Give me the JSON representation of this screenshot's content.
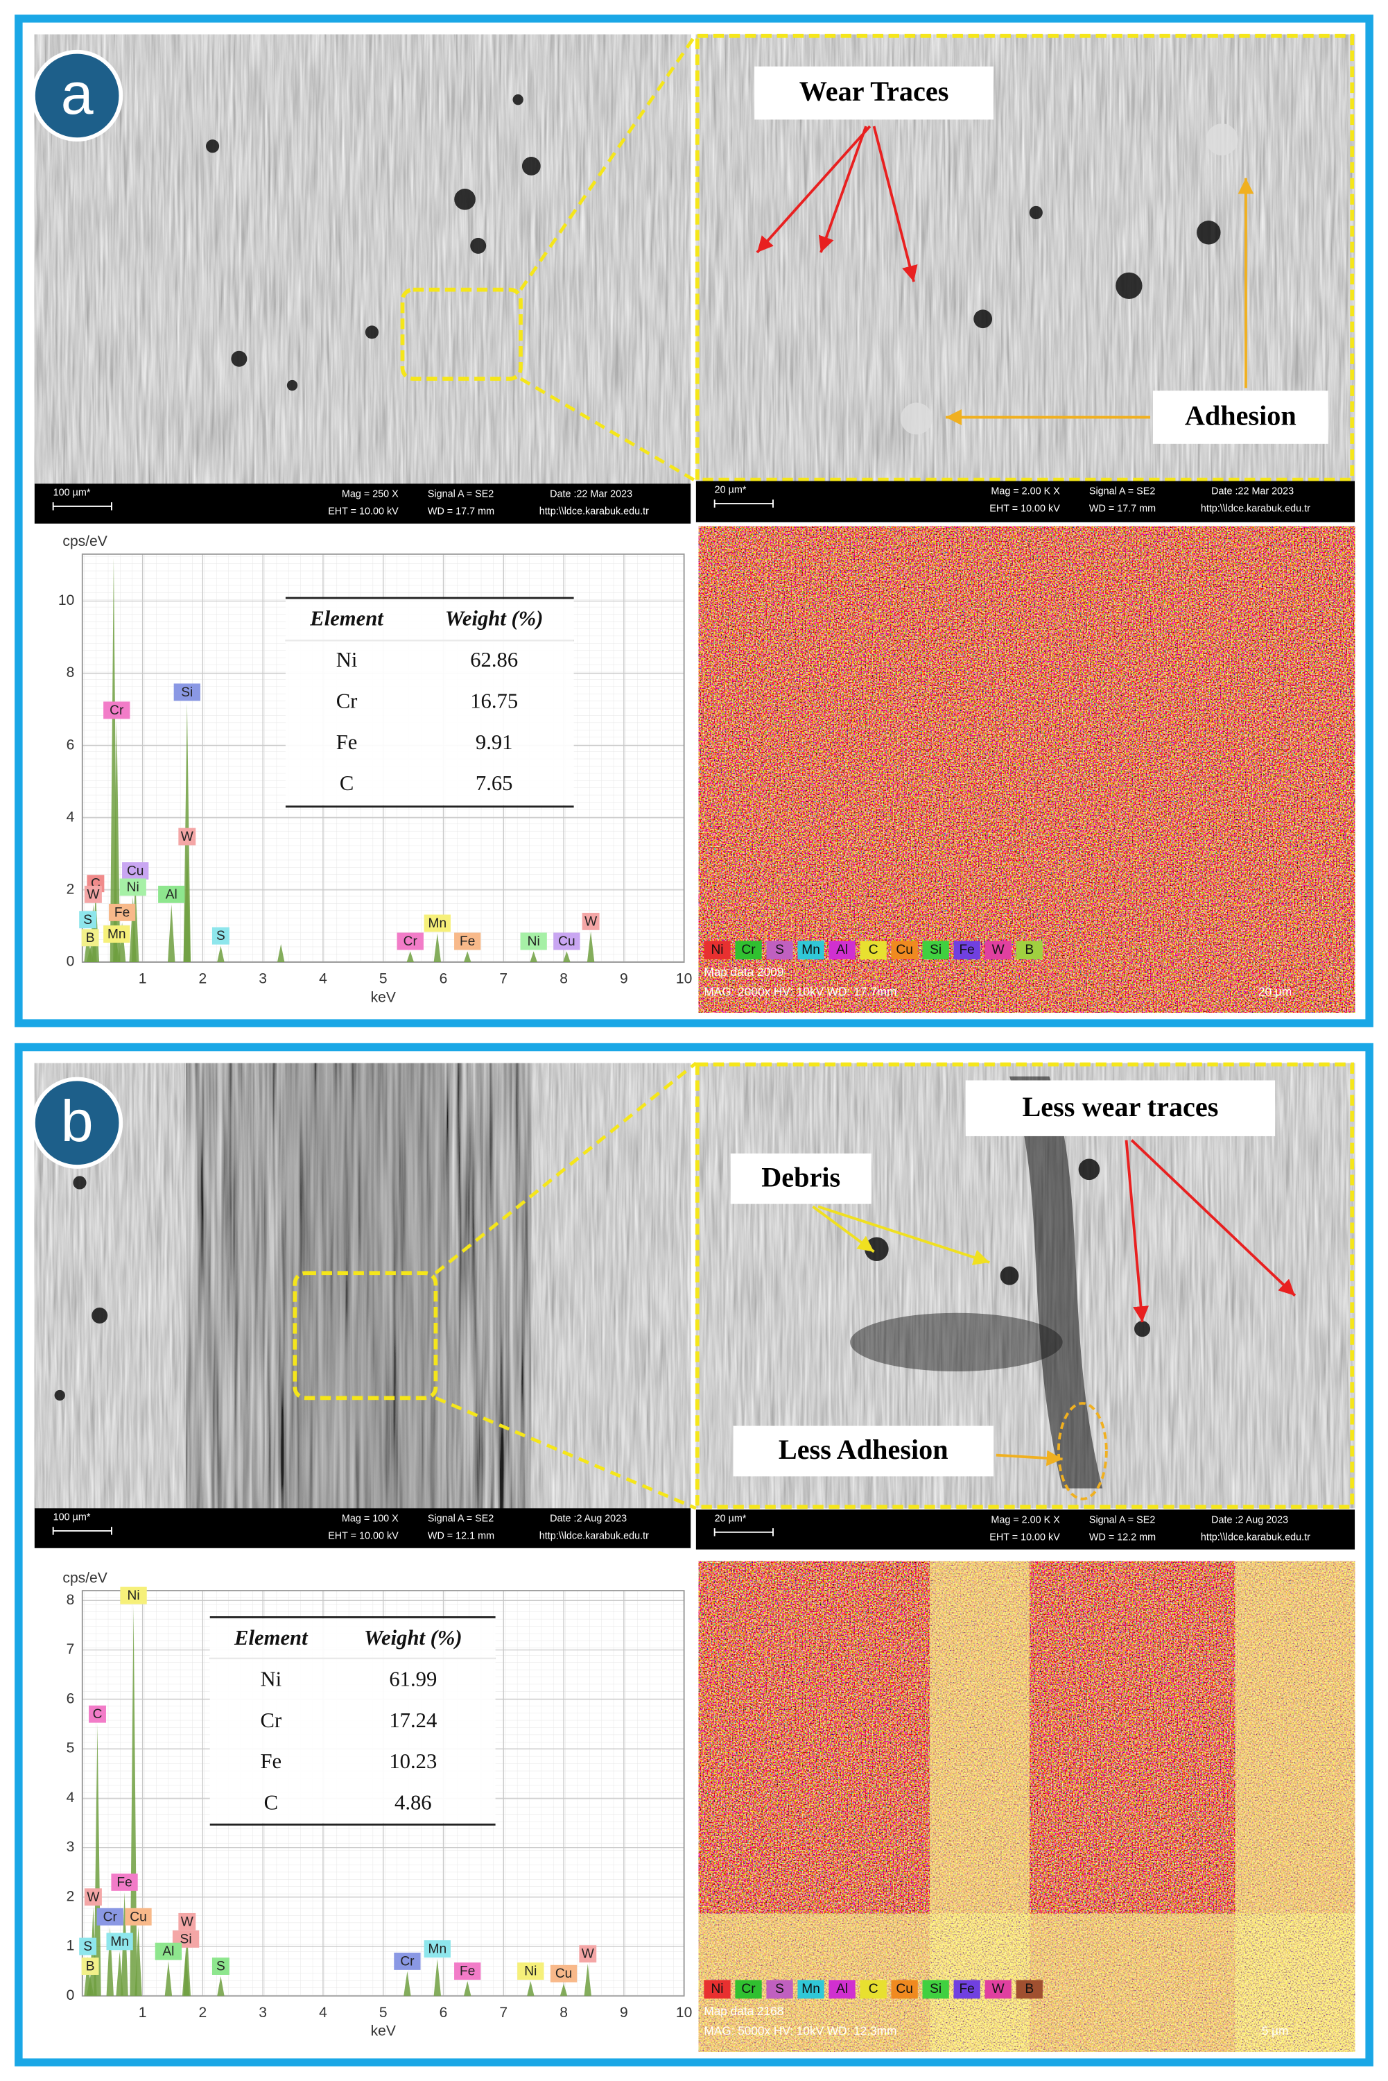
{
  "figure": {
    "panels": [
      {
        "label": "a",
        "sem_bar": {
          "scale": "100 µm*",
          "mag": "Mag =  250 X",
          "signal": "Signal A = SE2",
          "date": "Date :22 Mar 2023",
          "eht": "EHT = 10.00 kV",
          "wd": "WD = 17.7 mm",
          "url": "http:\\\\ldce.karabuk.edu.tr"
        },
        "zoom_bar": {
          "scale": "20 µm*",
          "mag": "Mag =  2.00 K X",
          "signal": "Signal A = SE2",
          "date": "Date :22 Mar 2023",
          "eht": "EHT = 10.00 kV",
          "wd": "WD = 17.7 mm",
          "url": "http:\\\\ldce.karabuk.edu.tr"
        },
        "annotations": [
          "Wear Traces",
          "Adhesion"
        ],
        "spectrum": {
          "y_label": "cps/eV",
          "x_label": "keV",
          "xlim": [
            0,
            10
          ],
          "xticks": [
            1,
            2,
            3,
            4,
            5,
            6,
            7,
            8,
            9,
            10
          ],
          "ylim": [
            0,
            11.3
          ],
          "yticks": [
            0,
            2,
            4,
            6,
            8,
            10
          ],
          "fill_color": "#6f9f3f",
          "peaks": [
            {
              "x": 0.52,
              "y": 11.2
            },
            {
              "x": 0.22,
              "y": 1.9,
              "label": "C",
              "color": "#f08a8a"
            },
            {
              "x": 0.18,
              "y": 1.6,
              "label": "W",
              "color": "#f4a6a6"
            },
            {
              "x": 0.09,
              "y": 0.9,
              "label": "S",
              "color": "#8ee6ec"
            },
            {
              "x": 0.13,
              "y": 0.4,
              "label": "B",
              "color": "#f2f08a"
            },
            {
              "x": 0.57,
              "y": 6.7,
              "label": "Cr",
              "color": "#f27cc8"
            },
            {
              "x": 0.66,
              "y": 1.1,
              "label": "Fe",
              "color": "#f8b98a"
            },
            {
              "x": 0.57,
              "y": 0.5,
              "label": "Mn",
              "color": "#f6f07a"
            },
            {
              "x": 0.88,
              "y": 2.25,
              "label": "Cu",
              "color": "#c9a6f2"
            },
            {
              "x": 0.84,
              "y": 1.8,
              "label": "Ni",
              "color": "#a6f0a6"
            },
            {
              "x": 1.74,
              "y": 7.2,
              "label": "Si",
              "color": "#8a98e4"
            },
            {
              "x": 1.74,
              "y": 3.2,
              "label": "W",
              "color": "#f4a6a6"
            },
            {
              "x": 1.48,
              "y": 1.6,
              "label": "Al",
              "color": "#8ee68e"
            },
            {
              "x": 2.3,
              "y": 0.45,
              "label": "S",
              "color": "#8ee6ec"
            },
            {
              "x": 3.3,
              "y": 0.5
            },
            {
              "x": 5.9,
              "y": 0.8,
              "label": "Mn",
              "color": "#f6f07a"
            },
            {
              "x": 5.45,
              "y": 0.3,
              "label": "Cr",
              "color": "#f27cc8"
            },
            {
              "x": 6.4,
              "y": 0.3,
              "label": "Fe",
              "color": "#f8b98a"
            },
            {
              "x": 7.5,
              "y": 0.3,
              "label": "Ni",
              "color": "#a6f0a6"
            },
            {
              "x": 8.05,
              "y": 0.3,
              "label": "Cu",
              "color": "#c9a6f2"
            },
            {
              "x": 8.45,
              "y": 0.85,
              "label": "W",
              "color": "#f4a6a6"
            }
          ]
        },
        "table": {
          "header": [
            "Element",
            "Weight (%)"
          ],
          "rows": [
            [
              "Ni",
              62.86
            ],
            [
              "Cr",
              16.75
            ],
            [
              "Fe",
              9.91
            ],
            [
              "C",
              7.65
            ]
          ]
        },
        "map": {
          "legend": [
            {
              "name": "Ni",
              "color": "#e83030"
            },
            {
              "name": "Cr",
              "color": "#30c030"
            },
            {
              "name": "S",
              "color": "#c060c0"
            },
            {
              "name": "Mn",
              "color": "#30c8d8"
            },
            {
              "name": "Al",
              "color": "#d030d0"
            },
            {
              "name": "C",
              "color": "#e8e030"
            },
            {
              "name": "Cu",
              "color": "#f08a20"
            },
            {
              "name": "Si",
              "color": "#40d040"
            },
            {
              "name": "Fe",
              "color": "#7040e0"
            },
            {
              "name": "W",
              "color": "#e040a0"
            },
            {
              "name": "B",
              "color": "#a0d040"
            }
          ],
          "caption": "Map data 2009",
          "meta": "MAG: 2000x  HV: 10kV  WD: 17.7mm",
          "scale": "20 µm"
        }
      },
      {
        "label": "b",
        "sem_bar": {
          "scale": "100 µm*",
          "mag": "Mag =  100 X",
          "signal": "Signal A = SE2",
          "date": "Date :2 Aug 2023",
          "eht": "EHT = 10.00 kV",
          "wd": "WD = 12.1 mm",
          "url": "http:\\\\ldce.karabuk.edu.tr"
        },
        "zoom_bar": {
          "scale": "20 µm*",
          "mag": "Mag =  2.00 K X",
          "signal": "Signal A = SE2",
          "date": "Date :2 Aug 2023",
          "eht": "EHT = 10.00 kV",
          "wd": "WD = 12.2 mm",
          "url": "http:\\\\ldce.karabuk.edu.tr"
        },
        "annotations": [
          "Less wear traces",
          "Debris",
          "Less Adhesion"
        ],
        "spectrum": {
          "y_label": "cps/eV",
          "x_label": "keV",
          "xlim": [
            0,
            10
          ],
          "xticks": [
            1,
            2,
            3,
            4,
            5,
            6,
            7,
            8,
            9,
            10
          ],
          "ylim": [
            0,
            8.2
          ],
          "yticks": [
            0,
            1,
            2,
            3,
            4,
            5,
            6,
            7,
            8
          ],
          "fill_color": "#6f9f3f",
          "peaks": [
            {
              "x": 0.09,
              "y": 0.8,
              "label": "S",
              "color": "#8ee6ec"
            },
            {
              "x": 0.13,
              "y": 0.4,
              "label": "B",
              "color": "#f2f08a"
            },
            {
              "x": 0.18,
              "y": 1.8,
              "label": "W",
              "color": "#f4a6a6"
            },
            {
              "x": 0.25,
              "y": 5.5,
              "label": "C",
              "color": "#f27cc8"
            },
            {
              "x": 0.46,
              "y": 1.4,
              "label": "Cr",
              "color": "#8a98e4"
            },
            {
              "x": 0.62,
              "y": 0.9,
              "label": "Mn",
              "color": "#8ee6ec"
            },
            {
              "x": 0.7,
              "y": 2.1,
              "label": "Fe",
              "color": "#f27cc8"
            },
            {
              "x": 0.93,
              "y": 1.4,
              "label": "Cu",
              "color": "#f8b98a"
            },
            {
              "x": 0.85,
              "y": 7.9,
              "label": "Ni",
              "color": "#f6f07a"
            },
            {
              "x": 1.74,
              "y": 1.3,
              "label": "W",
              "color": "#f4a6a6"
            },
            {
              "x": 1.72,
              "y": 0.95,
              "label": "Si",
              "color": "#f4a6a6"
            },
            {
              "x": 1.43,
              "y": 0.7,
              "label": "Al",
              "color": "#8ee68e"
            },
            {
              "x": 2.3,
              "y": 0.4,
              "label": "S",
              "color": "#8ee68e"
            },
            {
              "x": 5.4,
              "y": 0.5,
              "label": "Cr",
              "color": "#8a98e4"
            },
            {
              "x": 5.9,
              "y": 0.75,
              "label": "Mn",
              "color": "#8ee6ec"
            },
            {
              "x": 6.4,
              "y": 0.3,
              "label": "Fe",
              "color": "#f27cc8"
            },
            {
              "x": 7.45,
              "y": 0.3,
              "label": "Ni",
              "color": "#f6f07a"
            },
            {
              "x": 8.0,
              "y": 0.25,
              "label": "Cu",
              "color": "#f8b98a"
            },
            {
              "x": 8.4,
              "y": 0.65,
              "label": "W",
              "color": "#f4a6a6"
            }
          ]
        },
        "table": {
          "header": [
            "Element",
            "Weight (%)"
          ],
          "rows": [
            [
              "Ni",
              61.99
            ],
            [
              "Cr",
              17.24
            ],
            [
              "Fe",
              10.23
            ],
            [
              "C",
              4.86
            ]
          ]
        },
        "map": {
          "legend": [
            {
              "name": "Ni",
              "color": "#e83030"
            },
            {
              "name": "Cr",
              "color": "#30c030"
            },
            {
              "name": "S",
              "color": "#c060c0"
            },
            {
              "name": "Mn",
              "color": "#30c8d8"
            },
            {
              "name": "Al",
              "color": "#d030d0"
            },
            {
              "name": "C",
              "color": "#e8e030"
            },
            {
              "name": "Cu",
              "color": "#f08a20"
            },
            {
              "name": "Si",
              "color": "#40d040"
            },
            {
              "name": "Fe",
              "color": "#7040e0"
            },
            {
              "name": "W",
              "color": "#e040a0"
            },
            {
              "name": "B",
              "color": "#a05030"
            }
          ],
          "caption": "Map data 2168",
          "meta": "MAG: 5000x  HV: 10kV  WD: 12.3mm",
          "scale": "5 µm"
        }
      }
    ]
  }
}
